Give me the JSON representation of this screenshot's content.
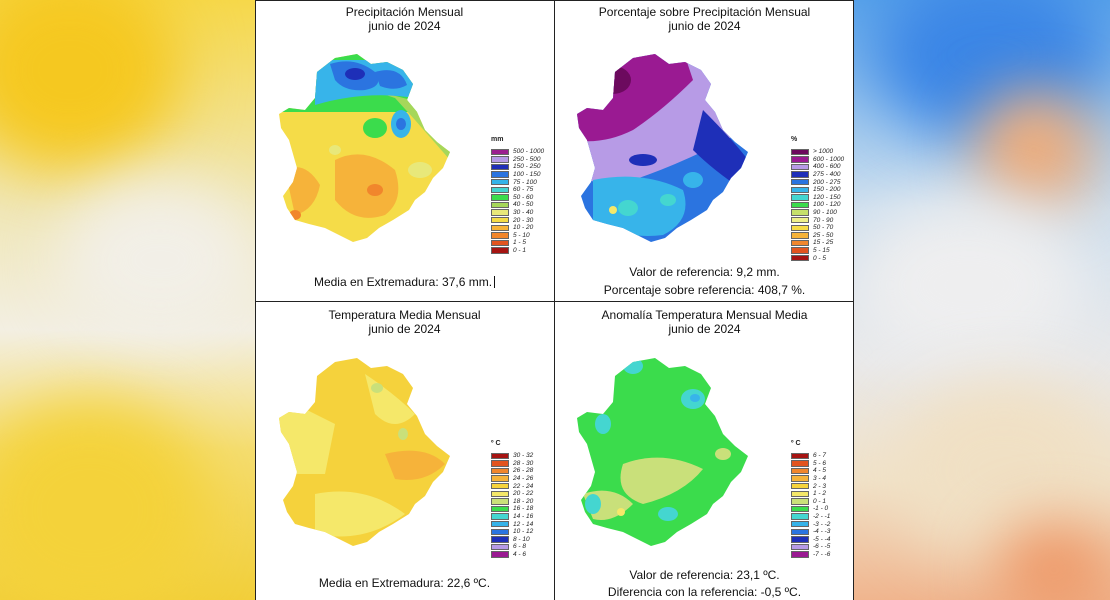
{
  "panels": [
    {
      "title_line1": "Precipitación Mensual",
      "title_line2": "junio de 2024",
      "captions": [
        "Media en Extremadura: 37,6 mm."
      ],
      "legend_unit": "mm",
      "legend": [
        {
          "label": "500 - 1000",
          "color": "#9b1f8f"
        },
        {
          "label": "250 - 500",
          "color": "#b69ae6"
        },
        {
          "label": "150 - 250",
          "color": "#1f2fb8"
        },
        {
          "label": "100 - 150",
          "color": "#2b74e0"
        },
        {
          "label": "75 - 100",
          "color": "#35b4e9"
        },
        {
          "label": "60 - 75",
          "color": "#45d4d0"
        },
        {
          "label": "50 - 60",
          "color": "#3bdc4c"
        },
        {
          "label": "40 - 50",
          "color": "#a6d75a"
        },
        {
          "label": "30 - 40",
          "color": "#e8e87a"
        },
        {
          "label": "20 - 30",
          "color": "#f5dc48"
        },
        {
          "label": "10 - 20",
          "color": "#f6b33a"
        },
        {
          "label": "5 - 10",
          "color": "#f1862c"
        },
        {
          "label": "1 - 5",
          "color": "#e2541e"
        },
        {
          "label": "0 - 1",
          "color": "#a51412"
        }
      ]
    },
    {
      "title_line1": "Porcentaje sobre Precipitación Mensual",
      "title_line2": "junio de 2024",
      "captions": [
        "Valor de referencia: 9,2 mm.",
        "Porcentaje sobre referencia: 408,7 %."
      ],
      "legend_unit": "%",
      "legend": [
        {
          "label": "> 1000",
          "color": "#6c0a5e"
        },
        {
          "label": "600 - 1000",
          "color": "#9a1a92"
        },
        {
          "label": "400 - 600",
          "color": "#b79be6"
        },
        {
          "label": "275 - 400",
          "color": "#1e2fb8"
        },
        {
          "label": "200 - 275",
          "color": "#2b74e0"
        },
        {
          "label": "150 - 200",
          "color": "#37b4ea"
        },
        {
          "label": "120 - 150",
          "color": "#44d6d0"
        },
        {
          "label": "100 - 120",
          "color": "#3bdc4c"
        },
        {
          "label": "90 - 100",
          "color": "#c5e06a"
        },
        {
          "label": "70 - 90",
          "color": "#eef08a"
        },
        {
          "label": "50 - 70",
          "color": "#f5dc48"
        },
        {
          "label": "25 - 50",
          "color": "#f6b33a"
        },
        {
          "label": "15 - 25",
          "color": "#f1862c"
        },
        {
          "label": "5 - 15",
          "color": "#e2541e"
        },
        {
          "label": "0 - 5",
          "color": "#a51412"
        }
      ]
    },
    {
      "title_line1": "Temperatura Media Mensual",
      "title_line2": "junio de 2024",
      "captions": [
        "Media en Extremadura: 22,6 ºC."
      ],
      "legend_unit": "º C",
      "legend": [
        {
          "label": "30 - 32",
          "color": "#a51412"
        },
        {
          "label": "28 - 30",
          "color": "#e2541e"
        },
        {
          "label": "26 - 28",
          "color": "#f1862c"
        },
        {
          "label": "24 - 26",
          "color": "#f6b33a"
        },
        {
          "label": "22 - 24",
          "color": "#f5d23c"
        },
        {
          "label": "20 - 22",
          "color": "#f5e86a"
        },
        {
          "label": "18 - 20",
          "color": "#c9e07a"
        },
        {
          "label": "16 - 18",
          "color": "#3bdc4c"
        },
        {
          "label": "14 - 16",
          "color": "#44d6d0"
        },
        {
          "label": "12 - 14",
          "color": "#37b4ea"
        },
        {
          "label": "10 - 12",
          "color": "#2b74e0"
        },
        {
          "label": "8 - 10",
          "color": "#1e2fb8"
        },
        {
          "label": "6 - 8",
          "color": "#b79be6"
        },
        {
          "label": "4 - 6",
          "color": "#9a1a92"
        }
      ]
    },
    {
      "title_line1": "Anomalía Temperatura Mensual Media",
      "title_line2": "junio de 2024",
      "captions": [
        "Valor de referencia: 23,1 ºC.",
        "Diferencia con la referencia: -0,5 ºC."
      ],
      "legend_unit": "º C",
      "legend": [
        {
          "label": "6 - 7",
          "color": "#a51412"
        },
        {
          "label": "5 - 6",
          "color": "#e2541e"
        },
        {
          "label": "4 - 5",
          "color": "#f1862c"
        },
        {
          "label": "3 - 4",
          "color": "#f6b33a"
        },
        {
          "label": "2 - 3",
          "color": "#f5d23c"
        },
        {
          "label": "1 - 2",
          "color": "#f5e86a"
        },
        {
          "label": "0 - 1",
          "color": "#c9e07a"
        },
        {
          "label": "-1 - 0",
          "color": "#3bdc4c"
        },
        {
          "label": "-2 - -1",
          "color": "#44d6d0"
        },
        {
          "label": "-3 - -2",
          "color": "#37b4ea"
        },
        {
          "label": "-4 - -3",
          "color": "#2b74e0"
        },
        {
          "label": "-5 - -4",
          "color": "#1e2fb8"
        },
        {
          "label": "-6 - -5",
          "color": "#b79be6"
        },
        {
          "label": "-7 - -6",
          "color": "#9a1a92"
        }
      ]
    }
  ]
}
